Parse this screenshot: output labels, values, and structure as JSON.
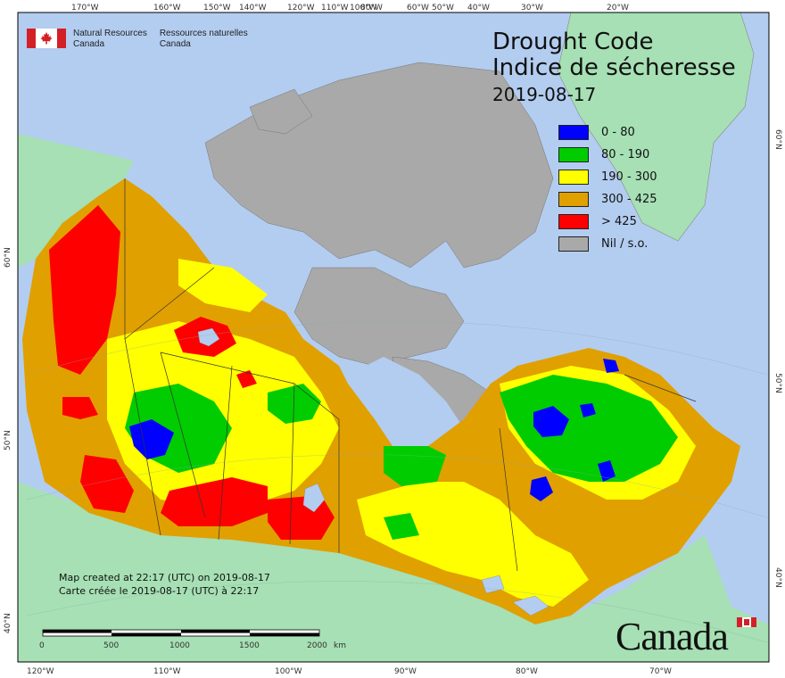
{
  "title": {
    "en": "Drought Code",
    "fr": "Indice de sécheresse",
    "date": "2019-08-17"
  },
  "agency": {
    "en_line1": "Natural Resources",
    "en_line2": "Canada",
    "fr_line1": "Ressources naturelles",
    "fr_line2": "Canada"
  },
  "legend": [
    {
      "label": "0 - 80",
      "color": "#0000ff"
    },
    {
      "label": "80 - 190",
      "color": "#00cc00"
    },
    {
      "label": "190 - 300",
      "color": "#ffff00"
    },
    {
      "label": "300 - 425",
      "color": "#e0a000"
    },
    {
      "label": "> 425",
      "color": "#ff0000"
    },
    {
      "label": "Nil / s.o.",
      "color": "#a9a9a9"
    }
  ],
  "credits": {
    "en": "Map created at 22:17 (UTC) on 2019-08-17",
    "fr": "Carte créée le 2019-08-17 (UTC) à 22:17"
  },
  "scale": {
    "ticks": [
      "0",
      "500",
      "1000",
      "1500",
      "2000"
    ],
    "unit": "km"
  },
  "wordmark": "Canada",
  "graticule": {
    "top_labels": [
      "170°W",
      "160°W",
      "150°W",
      "140°W",
      "120°W",
      "110°W",
      "100°W",
      "80°W",
      "60°W",
      "50°W",
      "40°W",
      "30°W",
      "20°W"
    ],
    "bottom_labels": [
      "120°W",
      "110°W",
      "100°W",
      "90°W",
      "80°W",
      "70°W"
    ],
    "left_labels": [
      "60°N",
      "50°N",
      "40°N"
    ],
    "right_labels": [
      "60°N",
      "50°N",
      "40°N"
    ]
  },
  "colors": {
    "ocean": "#b3cdf0",
    "land_outside": "#a6e0b4",
    "nil": "#a9a9a9"
  }
}
